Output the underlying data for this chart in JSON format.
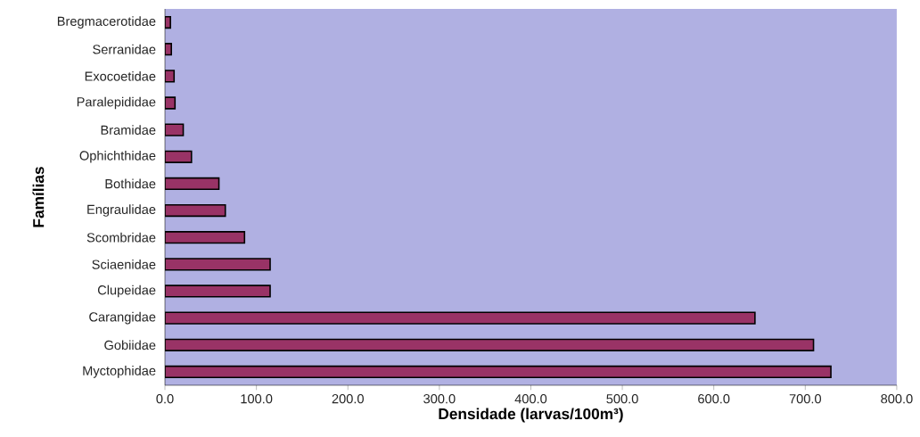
{
  "chart_data": {
    "type": "bar",
    "orientation": "horizontal",
    "xlabel": "Densidade (larvas/100m³)",
    "ylabel": "Famílias",
    "categories": [
      "Bregmacerotidae",
      "Serranidae",
      "Exocoetidae",
      "Paralepididae",
      "Bramidae",
      "Ophichthidae",
      "Bothidae",
      "Engraulidae",
      "Scombridae",
      "Sciaenidae",
      "Clupeidae",
      "Carangidae",
      "Gobiidae",
      "Myctophidae"
    ],
    "values": [
      6,
      7,
      10,
      11,
      20,
      29,
      59,
      66,
      87,
      115,
      115,
      645,
      709,
      728
    ],
    "color": "#993366",
    "xlim": [
      0,
      800
    ],
    "xticks": [
      {
        "value": 0,
        "label": "0.0"
      },
      {
        "value": 100,
        "label": "100.0"
      },
      {
        "value": 200,
        "label": "200.0"
      },
      {
        "value": 300,
        "label": "300.0"
      },
      {
        "value": 400,
        "label": "400.0"
      },
      {
        "value": 500,
        "label": "500.0"
      },
      {
        "value": 600,
        "label": "600.0"
      },
      {
        "value": 700,
        "label": "700.0"
      },
      {
        "value": 800,
        "label": "800.0"
      }
    ],
    "grid": false
  }
}
